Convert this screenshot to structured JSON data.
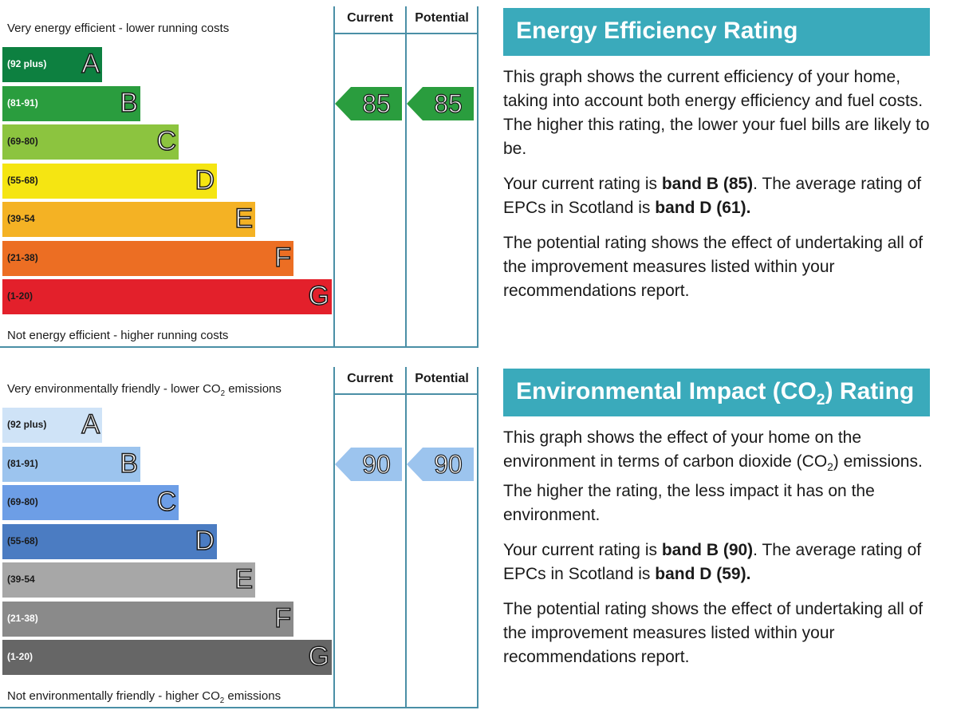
{
  "chart_data": [
    {
      "type": "bar",
      "title": "Energy Efficiency Rating",
      "top_caption": "Very energy efficient - lower running costs",
      "bottom_caption": "Not energy efficient - higher running costs",
      "column_headers": [
        "Current",
        "Potential"
      ],
      "bands": [
        {
          "letter": "A",
          "range": "(92 plus)",
          "color": "#0d8040",
          "range_color": "#ffffff"
        },
        {
          "letter": "B",
          "range": "(81-91)",
          "color": "#2a9d3e",
          "range_color": "#ffffff"
        },
        {
          "letter": "C",
          "range": "(69-80)",
          "color": "#8cc43f",
          "range_color": "#1a1a1a"
        },
        {
          "letter": "D",
          "range": "(55-68)",
          "color": "#f5e512",
          "range_color": "#1a1a1a"
        },
        {
          "letter": "E",
          "range": "(39-54",
          "color": "#f4b224",
          "range_color": "#1a1a1a"
        },
        {
          "letter": "F",
          "range": "(21-38)",
          "color": "#ec6e23",
          "range_color": "#1a1a1a"
        },
        {
          "letter": "G",
          "range": "(1-20)",
          "color": "#e3202b",
          "range_color": "#1a1a1a"
        }
      ],
      "current": {
        "value": "85",
        "band": "B",
        "color": "#2a9d3e"
      },
      "potential": {
        "value": "85",
        "band": "B",
        "color": "#2a9d3e"
      }
    },
    {
      "type": "bar",
      "title": "Environmental Impact (CO2) Rating",
      "top_caption": "Very environmentally friendly - lower CO2 emissions",
      "bottom_caption": "Not environmentally friendly - higher CO2 emissions",
      "column_headers": [
        "Current",
        "Potential"
      ],
      "bands": [
        {
          "letter": "A",
          "range": "(92 plus)",
          "color": "#cfe3f7",
          "range_color": "#1a1a1a"
        },
        {
          "letter": "B",
          "range": "(81-91)",
          "color": "#9cc4ee",
          "range_color": "#1a1a1a"
        },
        {
          "letter": "C",
          "range": "(69-80)",
          "color": "#6d9ee6",
          "range_color": "#1a1a1a"
        },
        {
          "letter": "D",
          "range": "(55-68)",
          "color": "#4b7cc2",
          "range_color": "#1a1a1a"
        },
        {
          "letter": "E",
          "range": "(39-54",
          "color": "#a7a7a7",
          "range_color": "#1a1a1a"
        },
        {
          "letter": "F",
          "range": "(21-38)",
          "color": "#8a8a8a",
          "range_color": "#ffffff"
        },
        {
          "letter": "G",
          "range": "(1-20)",
          "color": "#666666",
          "range_color": "#ffffff"
        }
      ],
      "current": {
        "value": "90",
        "band": "B",
        "color": "#9cc4ee"
      },
      "potential": {
        "value": "90",
        "band": "B",
        "color": "#9cc4ee"
      }
    }
  ],
  "energy_info": {
    "title": "Energy Efficiency Rating",
    "para1": "This graph shows the current efficiency of your home, taking into account both energy efficiency and fuel costs. The higher this rating, the lower your fuel bills are likely to be.",
    "para2_prefix": "Your current rating is ",
    "para2_bold1": "band B (85)",
    "para2_mid": ". The average rating of EPCs in Scotland is ",
    "para2_bold2": "band D (61).",
    "para3": "The potential rating shows the effect of undertaking all of the improvement measures listed within your recommendations report."
  },
  "env_info": {
    "title_prefix": "Environmental Impact (CO",
    "title_sub": "2",
    "title_suffix": ") Rating",
    "para1_prefix": "This graph shows the effect of your home on the environment in terms of carbon dioxide (CO",
    "para1_sub": "2",
    "para1_suffix": ") emissions. The higher the rating, the less impact it has on the environment.",
    "para2_prefix": "Your current rating is ",
    "para2_bold1": "band B (90)",
    "para2_mid": ". The average rating of EPCs in Scotland is ",
    "para2_bold2": "band D (59).",
    "para3": "The potential rating shows the effect of undertaking all of the improvement measures listed within your recommendations report."
  },
  "env_captions": {
    "top_prefix": "Very environmentally friendly - lower CO",
    "top_sub": "2",
    "top_suffix": " emissions",
    "bottom_prefix": "Not environmentally friendly - higher CO",
    "bottom_sub": "2",
    "bottom_suffix": " emissions"
  }
}
